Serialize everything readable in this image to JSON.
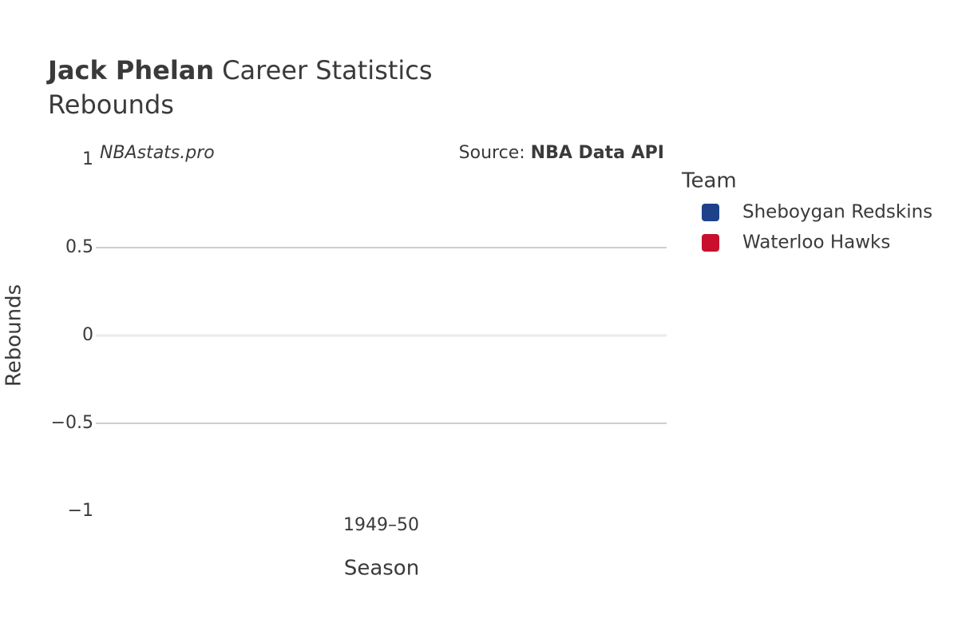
{
  "chart_data": {
    "type": "bar",
    "title_bold": "Jack Phelan",
    "title": "Career Statistics",
    "subtitle": "Rebounds",
    "watermark": "NBAstats.pro",
    "source_label": "Source:",
    "source": "NBA Data API",
    "x_label": "Season",
    "y_label": "Rebounds",
    "legend_title": "Team",
    "categories": [
      "1949–50"
    ],
    "series": [
      {
        "name": "Sheboygan Redskins",
        "color": "#1d428a",
        "values": [
          0
        ]
      },
      {
        "name": "Waterloo Hawks",
        "color": "#c8102e",
        "values": [
          0
        ]
      }
    ],
    "ylim": [
      -1,
      1
    ],
    "yticks": [
      {
        "value": -1,
        "label": "−1"
      },
      {
        "value": -0.5,
        "label": "−0.5"
      },
      0,
      0.5,
      1
    ],
    "grid": true
  }
}
